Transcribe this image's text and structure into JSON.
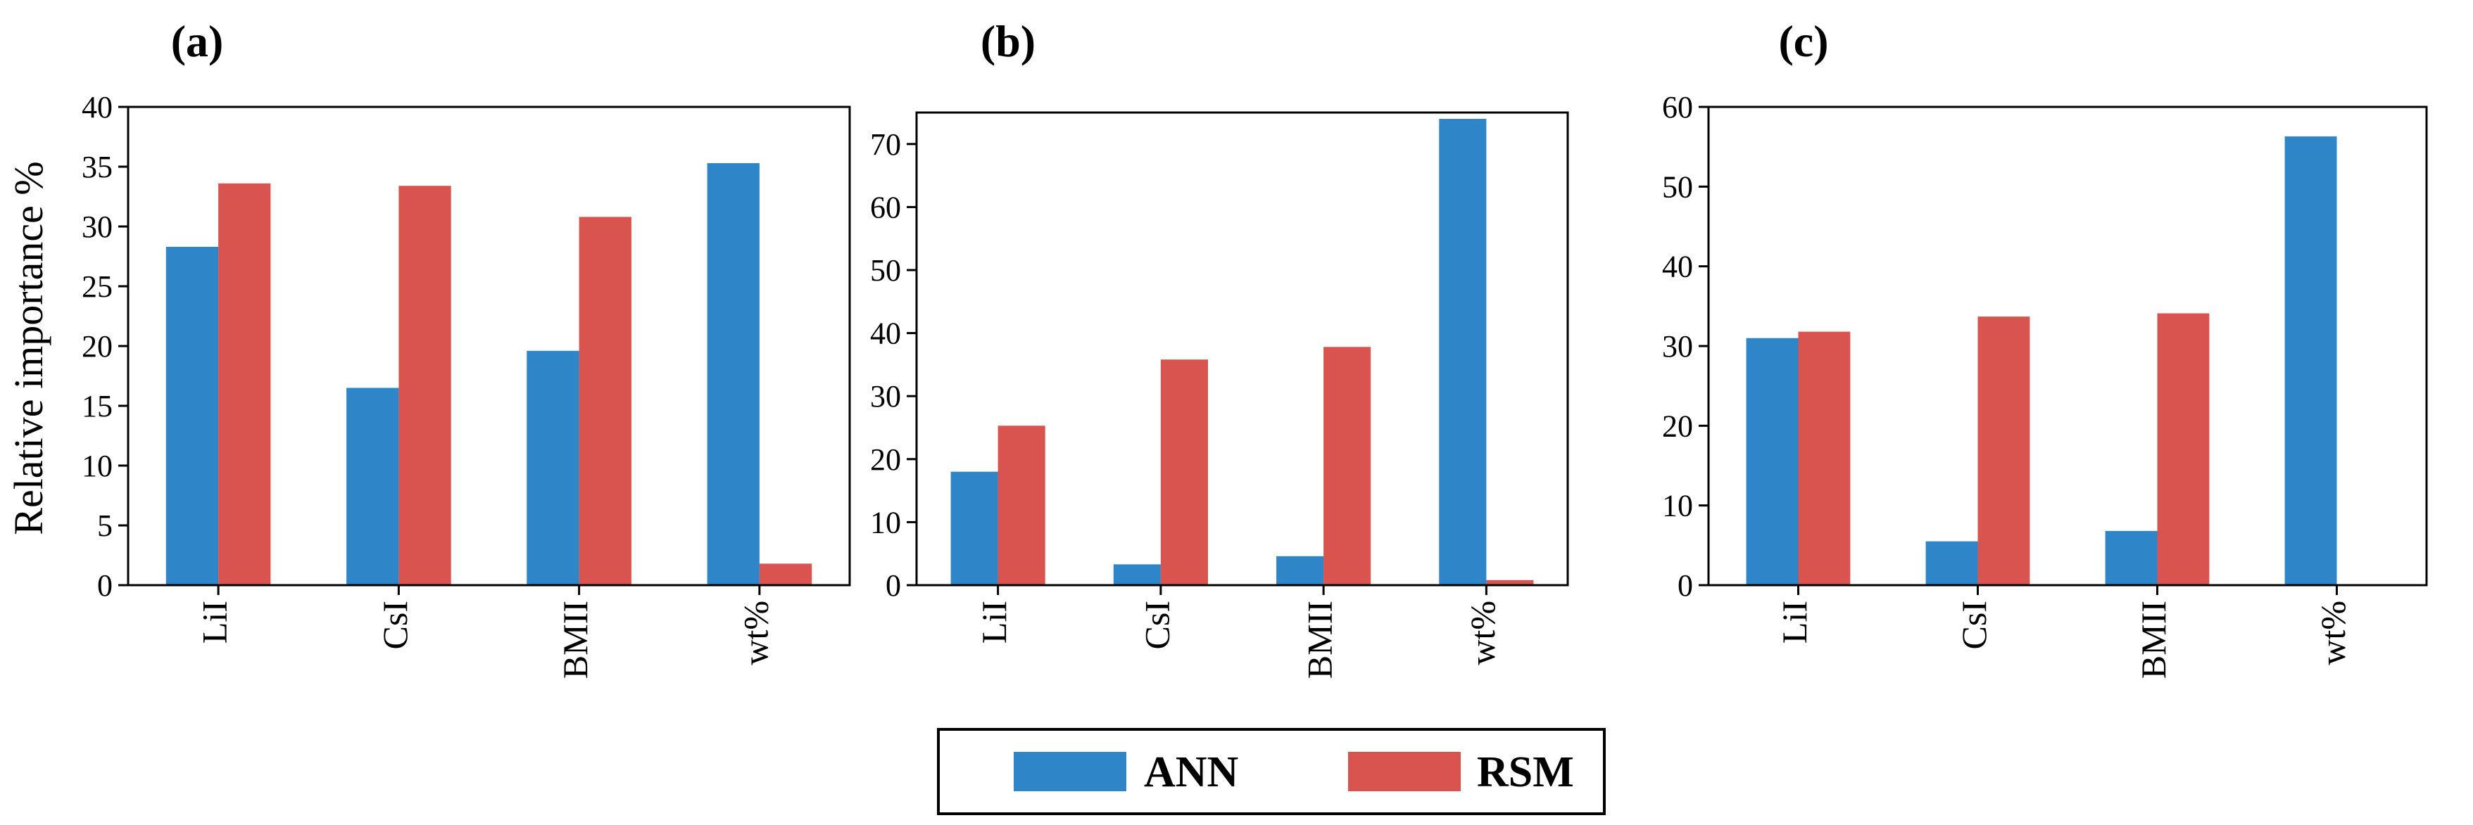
{
  "colors": {
    "ANN": "#2E86C8",
    "RSM": "#D9534F",
    "axis": "#000000"
  },
  "y_axis_label": "Relative importance %",
  "legend": {
    "entries": [
      "ANN",
      "RSM"
    ]
  },
  "chart_data": [
    {
      "type": "bar",
      "panel": "(a)",
      "categories": [
        "LiI",
        "CsI",
        "BMII",
        "wt%"
      ],
      "series": [
        {
          "name": "ANN",
          "values": [
            28.3,
            16.5,
            19.6,
            35.3
          ]
        },
        {
          "name": "RSM",
          "values": [
            33.6,
            33.4,
            30.8,
            1.8
          ]
        }
      ],
      "ylim": [
        0,
        40
      ],
      "yticks": [
        0,
        5,
        10,
        15,
        20,
        25,
        30,
        35,
        40
      ],
      "ylabel": "Relative importance %"
    },
    {
      "type": "bar",
      "panel": "(b)",
      "categories": [
        "LiI",
        "CsI",
        "BMII",
        "wt%"
      ],
      "series": [
        {
          "name": "ANN",
          "values": [
            18.0,
            3.3,
            4.6,
            74.0
          ]
        },
        {
          "name": "RSM",
          "values": [
            25.3,
            35.8,
            37.8,
            0.8
          ]
        }
      ],
      "ylim": [
        0,
        75
      ],
      "yticks": [
        0,
        10,
        20,
        30,
        40,
        50,
        60,
        70
      ],
      "ylabel": ""
    },
    {
      "type": "bar",
      "panel": "(c)",
      "categories": [
        "LiI",
        "CsI",
        "BMII",
        "wt%"
      ],
      "series": [
        {
          "name": "ANN",
          "values": [
            31.0,
            5.5,
            6.8,
            56.3
          ]
        },
        {
          "name": "RSM",
          "values": [
            31.8,
            33.7,
            34.1,
            0.0
          ]
        }
      ],
      "ylim": [
        0,
        60
      ],
      "yticks": [
        0,
        10,
        20,
        30,
        40,
        50,
        60
      ],
      "ylabel": ""
    }
  ]
}
